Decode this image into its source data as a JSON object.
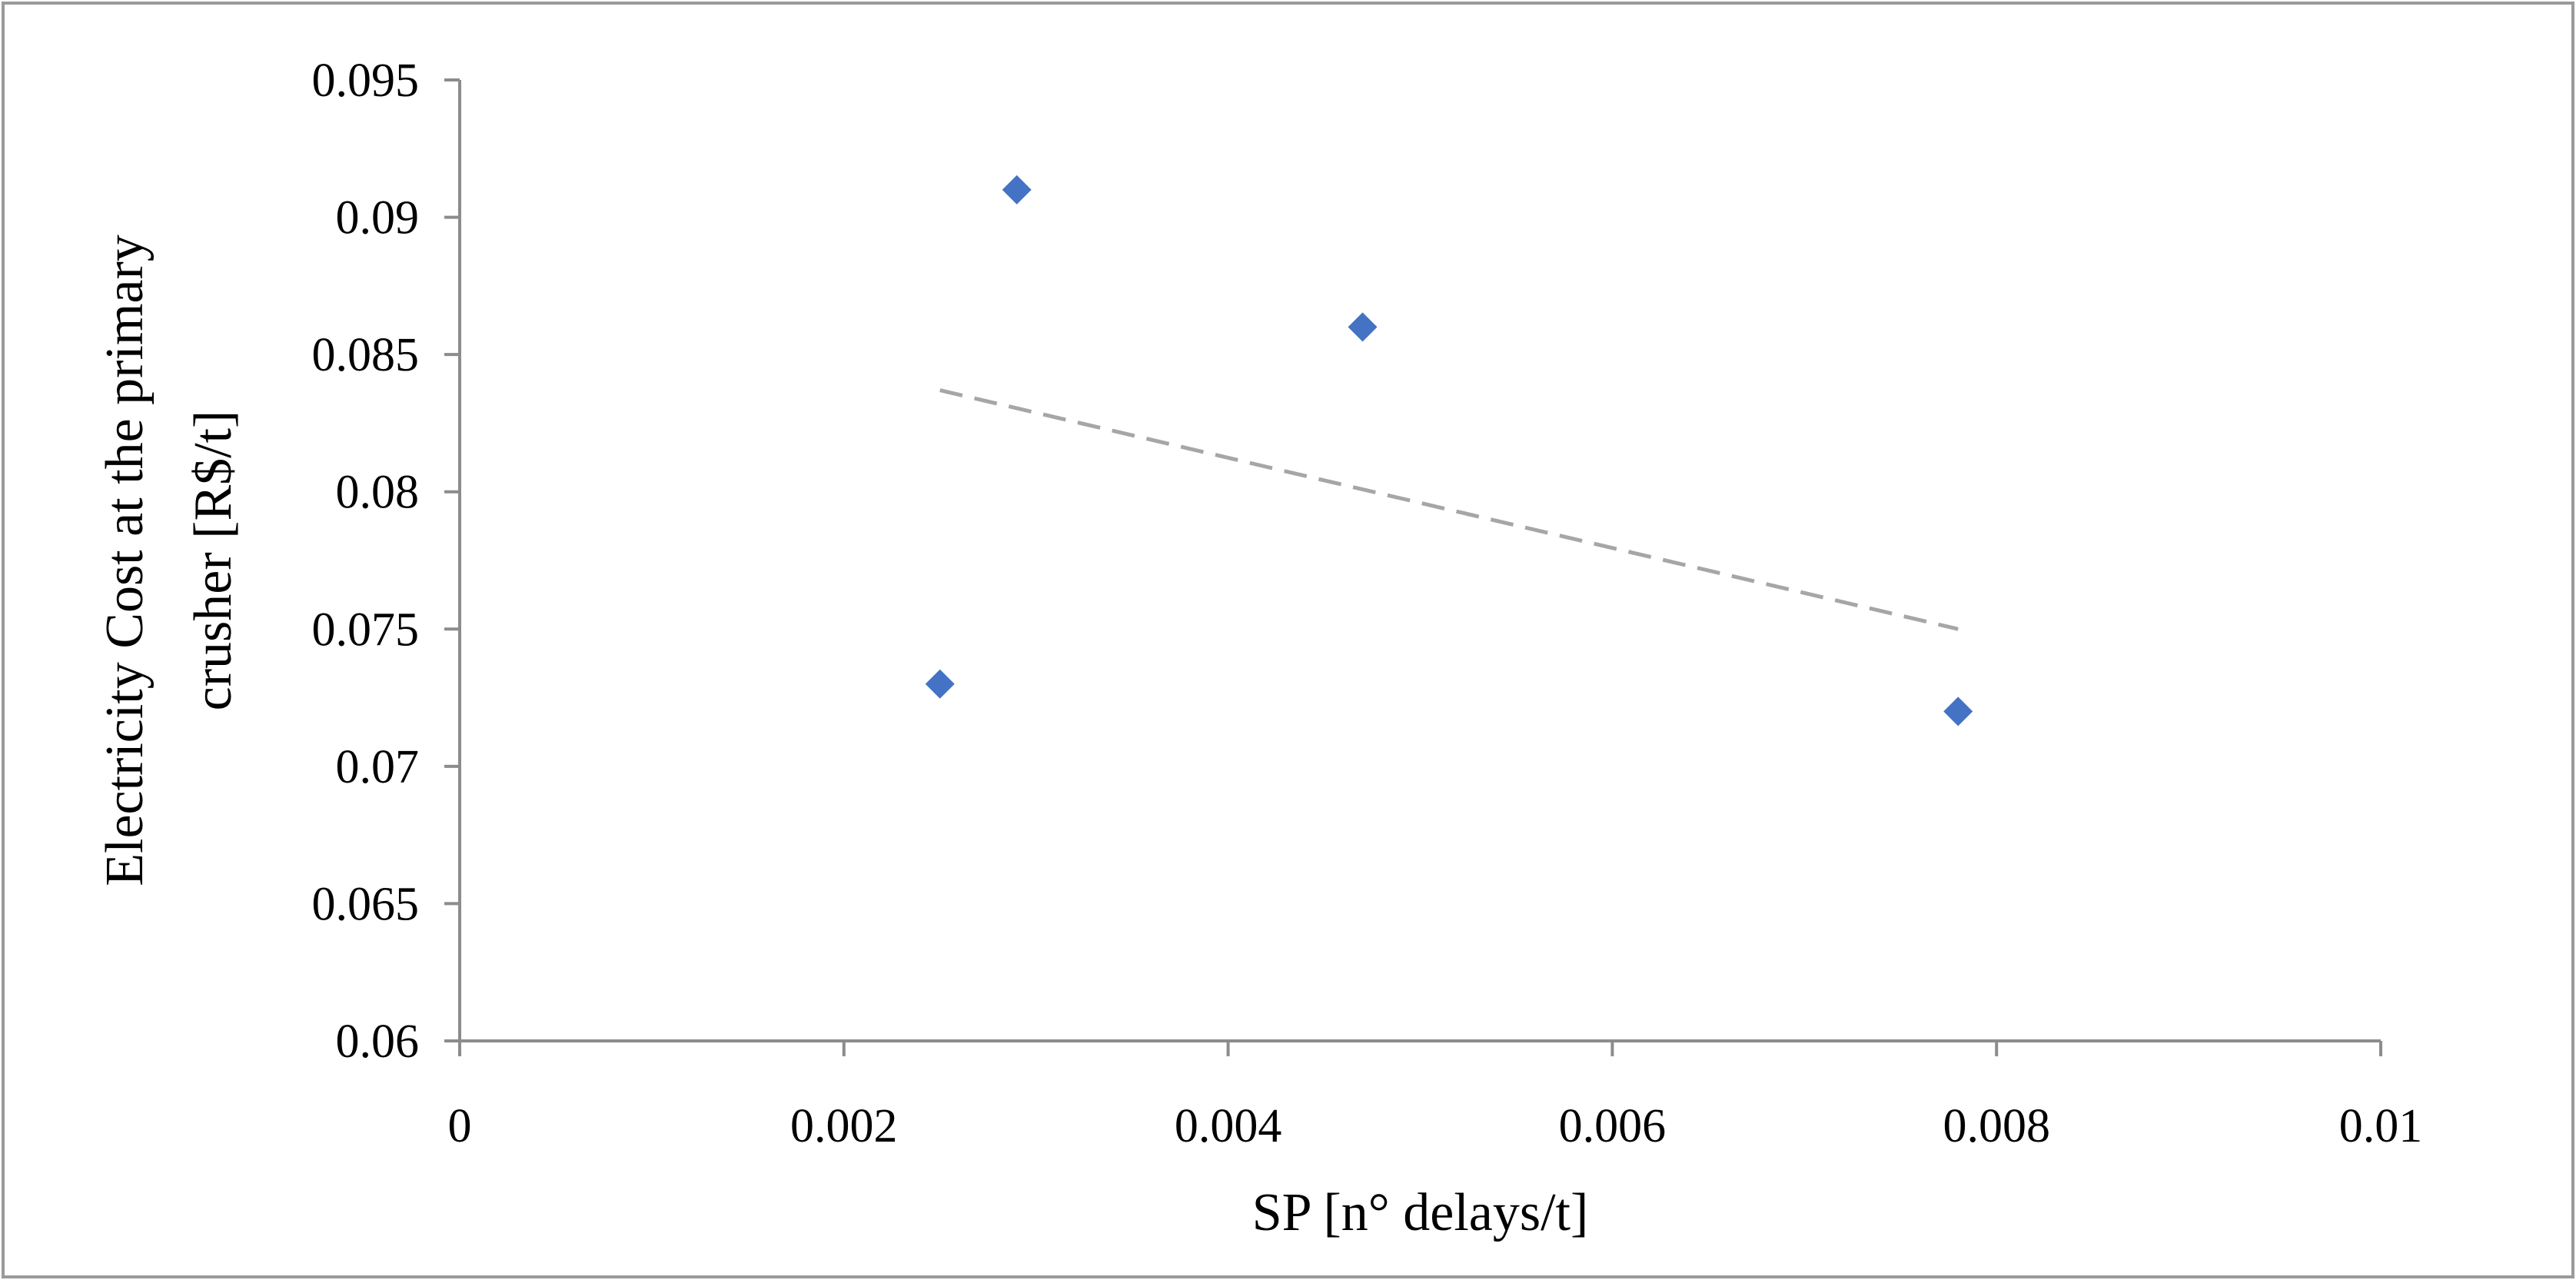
{
  "chart_data": {
    "type": "scatter",
    "xlabel": "SP [n° delays/t]",
    "ylabel_lines": [
      "Electricity Cost  at the primary",
      "crusher [R$/t]"
    ],
    "xlim": [
      0,
      0.01
    ],
    "ylim": [
      0.06,
      0.095
    ],
    "x_ticks": [
      0,
      0.002,
      0.004,
      0.006,
      0.008,
      0.01
    ],
    "x_tick_labels": [
      "0",
      "0.002",
      "0.004",
      "0.006",
      "0.008",
      "0.01"
    ],
    "y_ticks": [
      0.06,
      0.065,
      0.07,
      0.075,
      0.08,
      0.085,
      0.09,
      0.095
    ],
    "y_tick_labels": [
      "0.06",
      "0.065",
      "0.07",
      "0.075",
      "0.08",
      "0.085",
      "0.09",
      "0.095"
    ],
    "grid": false,
    "legend": "none",
    "marker": "diamond",
    "marker_color": "#4472c4",
    "trendline_color": "#a6a6a6",
    "points": [
      {
        "x": 0.0025,
        "y": 0.073
      },
      {
        "x": 0.0029,
        "y": 0.091
      },
      {
        "x": 0.0047,
        "y": 0.086
      },
      {
        "x": 0.0078,
        "y": 0.072
      }
    ],
    "trendline": {
      "type": "linear",
      "from": {
        "x": 0.0025,
        "y": 0.0837
      },
      "to": {
        "x": 0.0078,
        "y": 0.075
      }
    }
  }
}
